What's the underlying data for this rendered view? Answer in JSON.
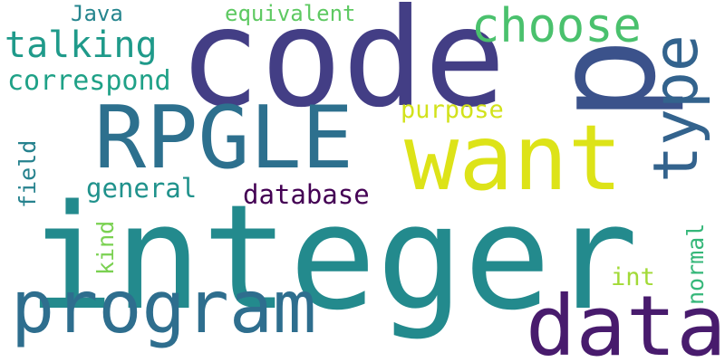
{
  "words": [
    {
      "id": "integer",
      "text": "integer",
      "color": "#238a8d"
    },
    {
      "id": "code",
      "text": "code",
      "color": "#433e85"
    },
    {
      "id": "p",
      "text": "p",
      "color": "#3b528b"
    },
    {
      "id": "rpgle",
      "text": "RPGLE",
      "color": "#2d708e"
    },
    {
      "id": "want",
      "text": "want",
      "color": "#dde318"
    },
    {
      "id": "program",
      "text": "program",
      "color": "#2e6e8e"
    },
    {
      "id": "data",
      "text": "data",
      "color": "#481b6d"
    },
    {
      "id": "type",
      "text": "type",
      "color": "#33638d"
    },
    {
      "id": "choose",
      "text": "choose",
      "color": "#4ac16d"
    },
    {
      "id": "talking",
      "text": "talking",
      "color": "#1f9a8a"
    },
    {
      "id": "correspond",
      "text": "correspond",
      "color": "#1fa187"
    },
    {
      "id": "java",
      "text": "Java",
      "color": "#25858e"
    },
    {
      "id": "equivalent",
      "text": "equivalent",
      "color": "#5ec962"
    },
    {
      "id": "purpose",
      "text": "purpose",
      "color": "#d2e21b"
    },
    {
      "id": "field",
      "text": "field",
      "color": "#26828e"
    },
    {
      "id": "general",
      "text": "general",
      "color": "#20928c"
    },
    {
      "id": "database",
      "text": "database",
      "color": "#440154"
    },
    {
      "id": "kind",
      "text": "kind",
      "color": "#7ad151"
    },
    {
      "id": "normal",
      "text": "normal",
      "color": "#35b779"
    },
    {
      "id": "int",
      "text": "int",
      "color": "#a2da37"
    }
  ]
}
